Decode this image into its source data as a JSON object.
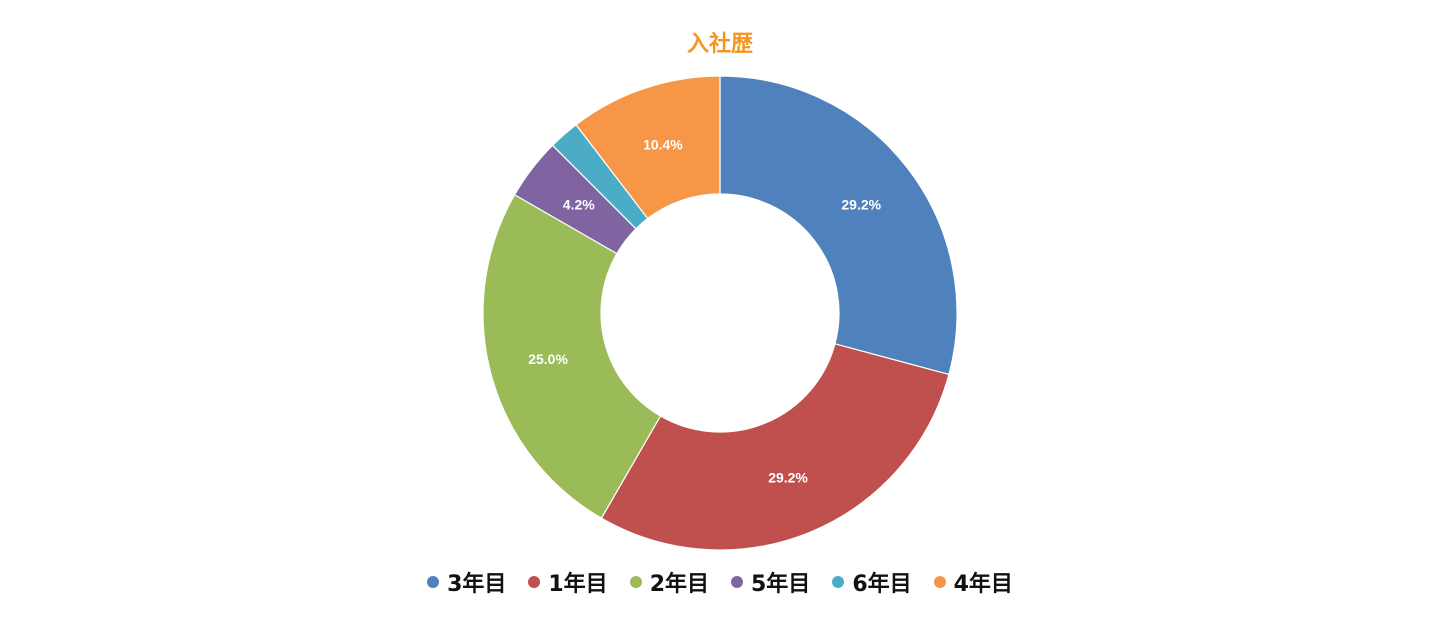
{
  "chart_data": {
    "type": "pie",
    "donut": true,
    "title": "入社歴",
    "title_color": "#F7941D",
    "categories": [
      "3年目",
      "1年目",
      "2年目",
      "5年目",
      "6年目",
      "4年目"
    ],
    "values": [
      29.2,
      29.2,
      25.0,
      4.2,
      2.1,
      10.4
    ],
    "data_labels": [
      "29.2%",
      "29.2%",
      "25.0%",
      "4.2%",
      "",
      "10.4%"
    ],
    "colors": [
      "#4F81BD",
      "#C0504D",
      "#9BBB59",
      "#8064A2",
      "#4BACC6",
      "#F79646"
    ],
    "legend_position": "bottom",
    "start_angle": "top, clockwise"
  }
}
